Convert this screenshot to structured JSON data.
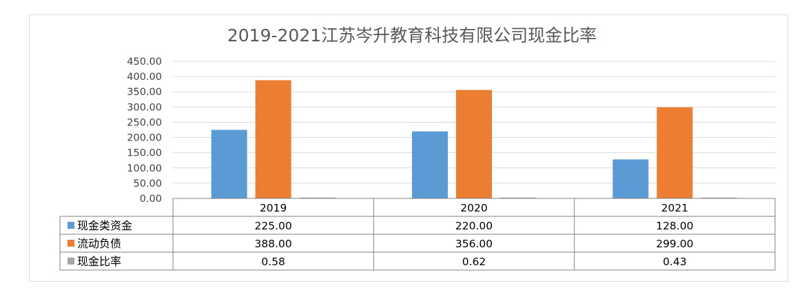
{
  "chart_data": {
    "type": "bar",
    "title": "2019-2021江苏岑升教育科技有限公司现金比率",
    "categories": [
      "2019",
      "2020",
      "2021"
    ],
    "series": [
      {
        "name": "现金类资金",
        "values": [
          225.0,
          220.0,
          128.0
        ],
        "display": [
          "225.00",
          "220.00",
          "128.00"
        ],
        "color": "#5b9bd5"
      },
      {
        "name": "流动负债",
        "values": [
          388.0,
          356.0,
          299.0
        ],
        "display": [
          "388.00",
          "356.00",
          "299.00"
        ],
        "color": "#ed7d31"
      },
      {
        "name": "现金比率",
        "values": [
          0.58,
          0.62,
          0.43
        ],
        "display": [
          "0.58",
          "0.62",
          "0.43"
        ],
        "color": "#a5a5a5"
      }
    ],
    "y_ticks": [
      "0.00",
      "50.00",
      "100.00",
      "150.00",
      "200.00",
      "250.00",
      "300.00",
      "350.00",
      "400.00",
      "450.00"
    ],
    "ylim": [
      0,
      450
    ],
    "grid": true,
    "legend": "data-table"
  }
}
